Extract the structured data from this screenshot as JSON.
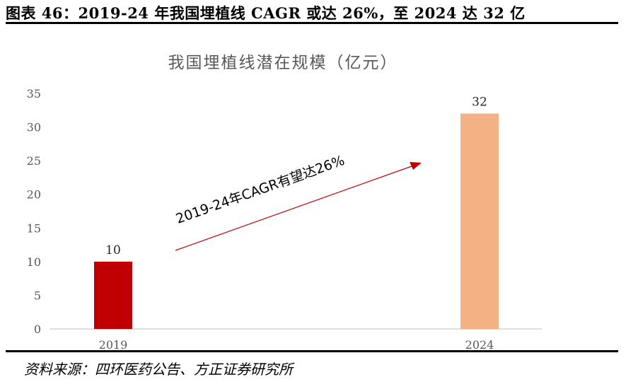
{
  "figure": {
    "title": "图表 46：2019-24 年我国埋植线 CAGR 或达 26%，至 2024 达 32 亿",
    "source": "资料来源：四环医药公告、方正证券研究所"
  },
  "chart_data": {
    "type": "bar",
    "title": "我国埋植线潜在规模（亿元）",
    "categories": [
      "2019",
      "2024"
    ],
    "values": [
      10,
      32
    ],
    "data_labels": [
      "10",
      "32"
    ],
    "colors": [
      "#C00000",
      "#F4B183"
    ],
    "ylim": [
      0,
      35
    ],
    "yticks": [
      "0",
      "5",
      "10",
      "15",
      "20",
      "25",
      "30",
      "35"
    ],
    "xlabel": "",
    "ylabel": "",
    "grid": false,
    "legend": "none",
    "annotation": {
      "text": "2019-24年CAGR有望达26%",
      "color": "#C00000"
    }
  }
}
